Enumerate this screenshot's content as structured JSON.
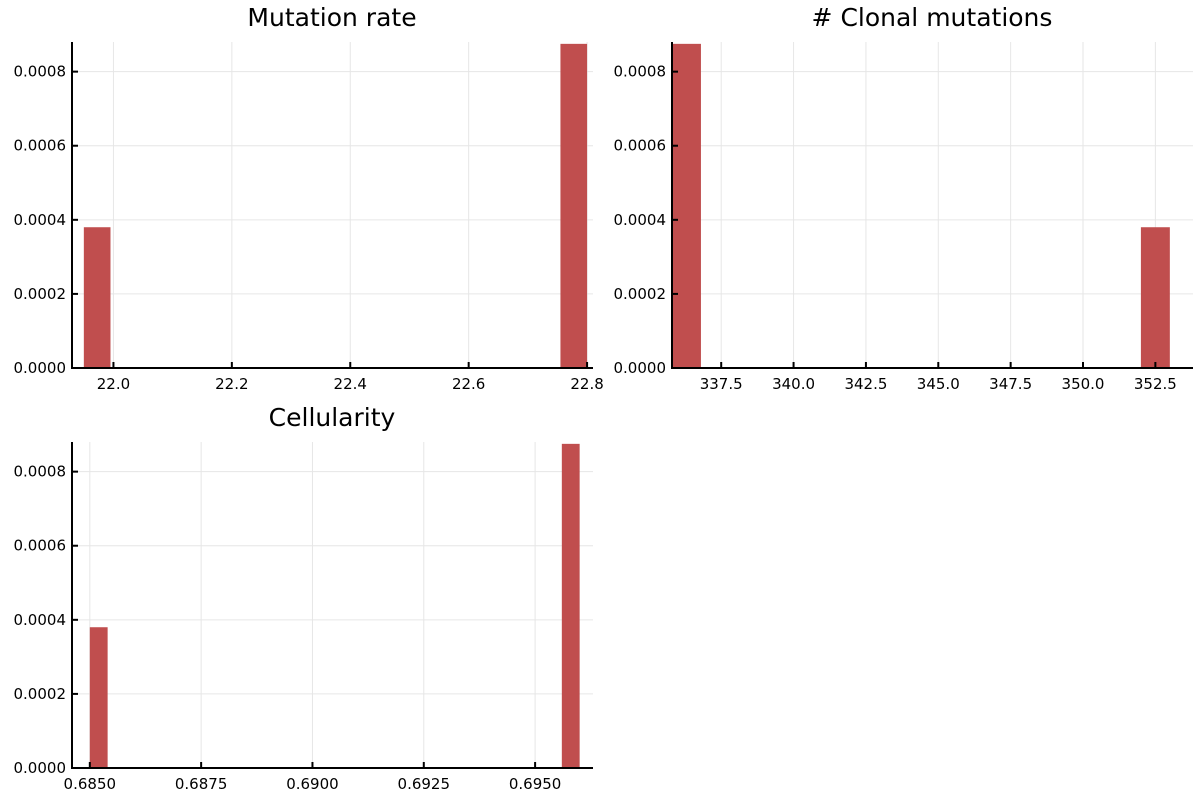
{
  "colors": {
    "bar": "#c04e4e",
    "grid": "#e6e6e6",
    "axis": "#000000"
  },
  "chart_data": [
    {
      "type": "bar",
      "title": "Mutation rate",
      "xlabel": "",
      "ylabel": "",
      "xlim": [
        21.93,
        22.81
      ],
      "ylim": [
        0,
        0.00088
      ],
      "xticks": [
        22.0,
        22.2,
        22.4,
        22.6,
        22.8
      ],
      "xtick_labels": [
        "22.0",
        "22.2",
        "22.4",
        "22.6",
        "22.8"
      ],
      "yticks": [
        0,
        0.0002,
        0.0004,
        0.0006,
        0.0008
      ],
      "ytick_labels": [
        "0.0000",
        "0.0002",
        "0.0004",
        "0.0006",
        "0.0008"
      ],
      "bins": [
        {
          "x0": 21.95,
          "x1": 21.995,
          "value": 0.00038
        },
        {
          "x0": 22.755,
          "x1": 22.8,
          "value": 0.000875
        }
      ],
      "grid": true,
      "legend": "none"
    },
    {
      "type": "bar",
      "title": "# Clonal mutations",
      "xlabel": "",
      "ylabel": "",
      "xlim": [
        335.8,
        353.8
      ],
      "ylim": [
        0,
        0.00088
      ],
      "xticks": [
        337.5,
        340.0,
        342.5,
        345.0,
        347.5,
        350.0,
        352.5
      ],
      "xtick_labels": [
        "337.5",
        "340.0",
        "342.5",
        "345.0",
        "347.5",
        "350.0",
        "352.5"
      ],
      "yticks": [
        0,
        0.0002,
        0.0004,
        0.0006,
        0.0008
      ],
      "ytick_labels": [
        "0.0000",
        "0.0002",
        "0.0004",
        "0.0006",
        "0.0008"
      ],
      "bins": [
        {
          "x0": 335.8,
          "x1": 336.8,
          "value": 0.000875
        },
        {
          "x0": 352.0,
          "x1": 353.0,
          "value": 0.00038
        }
      ],
      "grid": true,
      "legend": "none"
    },
    {
      "type": "bar",
      "title": "Cellularity",
      "xlabel": "",
      "ylabel": "",
      "xlim": [
        0.6846,
        0.6963
      ],
      "ylim": [
        0,
        0.00088
      ],
      "xticks": [
        0.685,
        0.6875,
        0.69,
        0.6925,
        0.695
      ],
      "xtick_labels": [
        "0.6850",
        "0.6875",
        "0.6900",
        "0.6925",
        "0.6950"
      ],
      "yticks": [
        0,
        0.0002,
        0.0004,
        0.0006,
        0.0008
      ],
      "ytick_labels": [
        "0.0000",
        "0.0002",
        "0.0004",
        "0.0006",
        "0.0008"
      ],
      "bins": [
        {
          "x0": 0.685,
          "x1": 0.6854,
          "value": 0.00038
        },
        {
          "x0": 0.6956,
          "x1": 0.696,
          "value": 0.000875
        }
      ],
      "grid": true,
      "legend": "none"
    }
  ]
}
